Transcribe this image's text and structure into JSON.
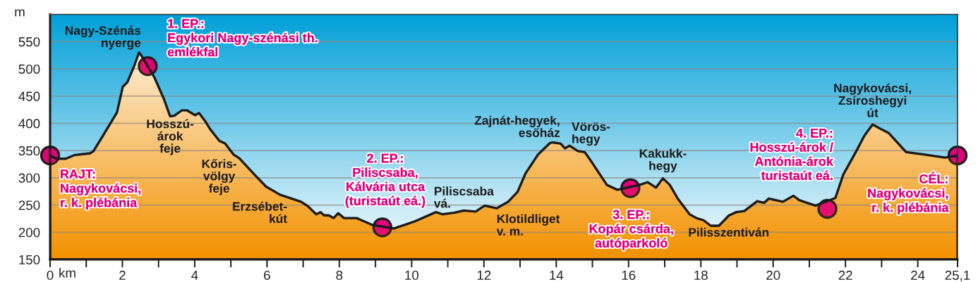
{
  "chart_data": {
    "type": "area",
    "xlabel": "km",
    "ylabel": "m",
    "xlim": [
      0,
      25.1
    ],
    "ylim": [
      150,
      600
    ],
    "xticks": [
      0,
      {
        "value": 1,
        "label": null
      },
      2,
      {
        "value": 3,
        "label": null
      },
      4,
      {
        "value": 5,
        "label": null
      },
      6,
      {
        "value": 7,
        "label": null
      },
      8,
      {
        "value": 9,
        "label": null
      },
      10,
      {
        "value": 11,
        "label": null
      },
      12,
      {
        "value": 13,
        "label": null
      },
      14,
      {
        "value": 15,
        "label": null
      },
      16,
      {
        "value": 17,
        "label": null
      },
      18,
      {
        "value": 19,
        "label": null
      },
      20,
      {
        "value": 21,
        "label": null
      },
      22,
      {
        "value": 23,
        "label": null
      },
      24,
      {
        "value": 25.1,
        "label": "25,1"
      }
    ],
    "yticks": [
      150,
      200,
      250,
      300,
      350,
      400,
      450,
      500,
      550
    ],
    "grid": "y",
    "series": [
      {
        "color": "#f39200",
        "x": [
          0,
          0.17,
          0.43,
          0.69,
          1.11,
          1.2,
          1.46,
          1.85,
          2.01,
          2.14,
          2.33,
          2.46,
          2.52,
          2.88,
          3.14,
          3.32,
          3.43,
          3.65,
          3.78,
          4.01,
          4.12,
          4.3,
          4.42,
          4.68,
          4.84,
          5.07,
          5.23,
          5.71,
          5.97,
          6.36,
          6.94,
          7.13,
          7.36,
          7.48,
          7.58,
          7.71,
          7.84,
          7.97,
          8.13,
          8.48,
          8.93,
          9.51,
          10.09,
          10.67,
          10.86,
          11.19,
          11.44,
          11.77,
          12.02,
          12.35,
          12.67,
          12.93,
          13.15,
          13.5,
          13.83,
          13.89,
          14.12,
          14.24,
          14.37,
          14.6,
          14.79,
          14.95,
          15.4,
          15.69,
          16.31,
          16.53,
          16.76,
          16.95,
          17.14,
          17.37,
          17.69,
          17.88,
          18.08,
          18.27,
          18.5,
          18.78,
          18.98,
          19.2,
          19.56,
          19.75,
          19.88,
          20.27,
          20.56,
          20.72,
          21.17,
          21.72,
          21.94,
          22.3,
          22.52,
          22.75,
          22.94,
          23.2,
          23.68,
          24.17,
          24.75,
          25.1
        ],
        "values": [
          341,
          335,
          335,
          342,
          345,
          349,
          377,
          420,
          467,
          476,
          506,
          530,
          525,
          485,
          446,
          413,
          414,
          424,
          424,
          415,
          419,
          403,
          390,
          368,
          363,
          343,
          336,
          302,
          284,
          269,
          256,
          248,
          233,
          237,
          231,
          231,
          226,
          235,
          226,
          226,
          213,
          207,
          220,
          237,
          233,
          236,
          240,
          238,
          249,
          244,
          256,
          274,
          308,
          343,
          364,
          365,
          363,
          354,
          359,
          349,
          347,
          332,
          287,
          278,
          287,
          292,
          282,
          299,
          287,
          261,
          233,
          226,
          222,
          212,
          212,
          231,
          237,
          239,
          257,
          254,
          262,
          256,
          267,
          259,
          249,
          263,
          306,
          349,
          377,
          398,
          391,
          382,
          347,
          343,
          337,
          341
        ]
      },
      {
        "type": "scatter",
        "color": "#e2007a",
        "marker": "circle",
        "x": [
          0,
          2.7,
          9.19,
          16.05,
          21.5,
          25.1
        ],
        "values": [
          341,
          505,
          209,
          281,
          243,
          341
        ]
      }
    ],
    "annotations": [
      {
        "text": "RAJT:\nNagykovácsi,\nr. k. plébánia",
        "x": 0,
        "y": 341
      },
      {
        "text": "1. EP.:\nEgykori Nagy-szénási th.\nemlékfal",
        "x": 2.7,
        "y": 505
      },
      {
        "text": "2. EP.:\nPiliscsaba,\nKálvária utca\n(turistaút eá.)",
        "x": 9.19,
        "y": 209
      },
      {
        "text": "3. EP.:\nKopár csárda,\nautóparkoló",
        "x": 16.05,
        "y": 281
      },
      {
        "text": "4. EP.:\nHosszú-árok /\nAntónia-árok\nturistaút eá.",
        "x": 21.5,
        "y": 243
      },
      {
        "text": "CÉL:\nNagykovácsi,\nr. k. plébánia",
        "x": 25.1,
        "y": 341
      },
      {
        "text": "Nagy-Szénás\nnyerge",
        "x": 2.46,
        "y": 530
      },
      {
        "text": "Hosszú-\nárok\nfeje",
        "x": 3.32,
        "y": 413
      },
      {
        "text": "Kőris-\nvölgy\nfeje",
        "x": 4.84,
        "y": 363
      },
      {
        "text": "Erzsébet-\nkút",
        "x": 6.94,
        "y": 256
      },
      {
        "text": "Piliscsaba\nvá.",
        "x": 10.67,
        "y": 237
      },
      {
        "text": "Klotildliget\nv. m.",
        "x": 12.35,
        "y": 244
      },
      {
        "text": "Zajnát-hegyek,\nesőház",
        "x": 13.89,
        "y": 365
      },
      {
        "text": "Vörös-\nhegy",
        "x": 14.37,
        "y": 359
      },
      {
        "text": "Kakukk-\nhegy",
        "x": 16.95,
        "y": 299
      },
      {
        "text": "Pilisszentiván",
        "x": 18.5,
        "y": 212
      },
      {
        "text": "Nagykovácsi,\nZsíroshegyi\nút",
        "x": 22.75,
        "y": 398
      }
    ]
  }
}
